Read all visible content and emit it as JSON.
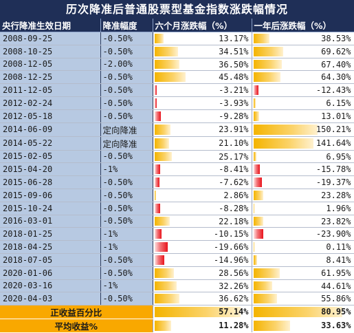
{
  "title": "历次降准后普通股票型基金指数涨跌幅情况",
  "headers": {
    "date": "央行降准生效日期",
    "cut": "降准幅度",
    "six_month": "六个月涨跌幅（%）",
    "one_year": "一年后涨跌幅（%）"
  },
  "rows": [
    {
      "date": "2008-09-25",
      "cut": "-0.50%",
      "six": "13.17%",
      "year": "38.53%"
    },
    {
      "date": "2008-10-25",
      "cut": "-0.50%",
      "six": "34.51%",
      "year": "69.62%"
    },
    {
      "date": "2008-12-05",
      "cut": "-2.00%",
      "six": "36.50%",
      "year": "67.40%"
    },
    {
      "date": "2008-12-25",
      "cut": "-0.50%",
      "six": "45.48%",
      "year": "64.30%"
    },
    {
      "date": "2011-12-05",
      "cut": "-0.50%",
      "six": "-3.21%",
      "year": "-12.43%"
    },
    {
      "date": "2012-02-24",
      "cut": "-0.50%",
      "six": "-3.93%",
      "year": "6.15%"
    },
    {
      "date": "2012-05-18",
      "cut": "-0.50%",
      "six": "-9.28%",
      "year": "13.01%"
    },
    {
      "date": "2014-06-09",
      "cut": "定向降准",
      "six": "23.91%",
      "year": "150.21%"
    },
    {
      "date": "2014-05-22",
      "cut": "定向降准",
      "six": "21.10%",
      "year": "141.64%"
    },
    {
      "date": "2015-02-05",
      "cut": "-0.50%",
      "six": "25.17%",
      "year": "6.95%"
    },
    {
      "date": "2015-04-20",
      "cut": "-1%",
      "six": "-8.41%",
      "year": "-15.78%"
    },
    {
      "date": "2015-06-28",
      "cut": "-0.50%",
      "six": "-7.62%",
      "year": "-19.37%"
    },
    {
      "date": "2015-09-06",
      "cut": "-0.50%",
      "six": "2.86%",
      "year": "23.28%"
    },
    {
      "date": "2015-10-24",
      "cut": "-0.50%",
      "six": "-8.28%",
      "year": "1.96%"
    },
    {
      "date": "2016-03-01",
      "cut": "-0.50%",
      "six": "22.18%",
      "year": "23.82%"
    },
    {
      "date": "2018-01-25",
      "cut": "-1%",
      "six": "-10.15%",
      "year": "-23.90%"
    },
    {
      "date": "2018-04-25",
      "cut": "-1%",
      "six": "-19.66%",
      "year": "0.11%"
    },
    {
      "date": "2018-07-05",
      "cut": "-0.50%",
      "six": "-14.96%",
      "year": "8.41%"
    },
    {
      "date": "2020-01-06",
      "cut": "-0.50%",
      "six": "28.56%",
      "year": "61.95%"
    },
    {
      "date": "2020-03-16",
      "cut": "-1%",
      "six": "32.26%",
      "year": "44.61%"
    },
    {
      "date": "2020-04-03",
      "cut": "-0.50%",
      "six": "36.62%",
      "year": "55.86%"
    }
  ],
  "summary": [
    {
      "label": "正收益百分比",
      "six": "57.14%",
      "year": "80.95%"
    },
    {
      "label": "平均收益%",
      "six": "11.28%",
      "year": "33.63%"
    }
  ],
  "colors": {
    "header_bg": "#1f2f57",
    "date_bg": "#b7c9e2",
    "positive_bar": "#f4b400",
    "negative_bar": "#e8141c",
    "summary_bg": "#f9a800"
  }
}
